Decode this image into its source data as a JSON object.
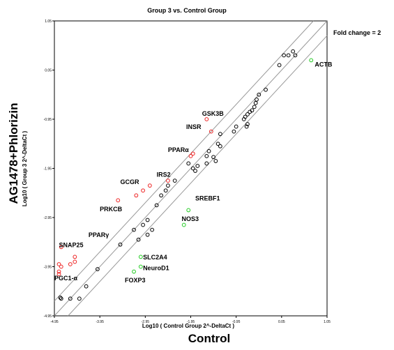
{
  "chart_data": {
    "type": "scatter",
    "title": "Group 3 vs. Control Group",
    "xlabel": "Log10 ( Control Group 2^-DeltaCt )",
    "ylabel": "Log10 ( Group 3 2^-DeltaCt )",
    "outer_xlabel": "Control",
    "outer_ylabel": "AG1478+Phlorizin",
    "xlim": [
      -4.95,
      1.05
    ],
    "ylim": [
      -4.95,
      1.05
    ],
    "x_ticks": [
      "-4.95",
      "-3.95",
      "-2.95",
      "-1.95",
      "-0.95",
      "0.05",
      "1.05"
    ],
    "y_ticks": [
      "-4.95",
      "-3.95",
      "-2.95",
      "-1.95",
      "-0.95",
      "0.05",
      "1.05"
    ],
    "fold_change_label": "Fold change = 2",
    "colors": {
      "unchanged": "#000000",
      "up": "#ee2222",
      "down": "#22cc22",
      "guide": "#999999"
    },
    "series": [
      {
        "group": "unchanged",
        "points": [
          [
            0.0,
            0.15
          ],
          [
            0.1,
            0.35
          ],
          [
            0.2,
            0.35
          ],
          [
            0.3,
            0.43
          ],
          [
            0.35,
            0.35
          ],
          [
            -0.3,
            -0.35
          ],
          [
            -0.45,
            -0.45
          ],
          [
            -0.5,
            -0.55
          ],
          [
            -0.52,
            -0.62
          ],
          [
            -0.55,
            -0.7
          ],
          [
            -0.6,
            -0.77
          ],
          [
            -0.65,
            -0.8
          ],
          [
            -0.7,
            -0.85
          ],
          [
            -0.75,
            -0.9
          ],
          [
            -0.78,
            -0.95
          ],
          [
            -0.7,
            -1.05
          ],
          [
            -0.72,
            -1.1
          ],
          [
            -0.95,
            -1.1
          ],
          [
            -1.0,
            -1.2
          ],
          [
            -1.3,
            -1.25
          ],
          [
            -1.3,
            -1.5
          ],
          [
            -1.35,
            -1.45
          ],
          [
            -1.55,
            -1.6
          ],
          [
            -1.6,
            -1.7
          ],
          [
            -1.45,
            -1.72
          ],
          [
            -1.6,
            -1.85
          ],
          [
            -1.8,
            -1.9
          ],
          [
            -1.9,
            -1.95
          ],
          [
            -2.0,
            -1.85
          ],
          [
            -1.85,
            -2.0
          ],
          [
            -1.4,
            -1.8
          ],
          [
            -2.3,
            -2.2
          ],
          [
            -2.45,
            -2.3
          ],
          [
            -2.5,
            -2.4
          ],
          [
            -2.6,
            -2.5
          ],
          [
            -2.7,
            -2.7
          ],
          [
            -2.9,
            -3.0
          ],
          [
            -3.0,
            -3.1
          ],
          [
            -3.2,
            -3.2
          ],
          [
            -3.1,
            -3.4
          ],
          [
            -2.9,
            -3.3
          ],
          [
            -2.8,
            -3.2
          ],
          [
            -3.5,
            -3.5
          ],
          [
            -4.0,
            -4.0
          ],
          [
            -4.25,
            -4.35
          ],
          [
            -4.4,
            -4.6
          ],
          [
            -4.6,
            -4.6
          ],
          [
            -4.8,
            -4.6
          ],
          [
            -4.82,
            -4.58
          ]
        ]
      },
      {
        "group": "up",
        "points": [
          [
            -1.6,
            -0.95
          ],
          [
            -1.5,
            -1.2
          ],
          [
            -1.9,
            -1.65
          ],
          [
            -1.95,
            -1.7
          ],
          [
            -2.45,
            -2.2
          ],
          [
            -2.85,
            -2.3
          ],
          [
            -3.0,
            -2.4
          ],
          [
            -3.15,
            -2.5
          ],
          [
            -3.55,
            -2.6
          ],
          [
            -4.8,
            -3.55
          ],
          [
            -4.5,
            -3.75
          ],
          [
            -4.5,
            -3.85
          ],
          [
            -4.6,
            -3.9
          ],
          [
            -4.85,
            -3.9
          ],
          [
            -4.8,
            -3.95
          ],
          [
            -4.85,
            -4.05
          ],
          [
            -4.85,
            -4.1
          ]
        ]
      },
      {
        "group": "down",
        "points": [
          [
            0.7,
            0.25
          ],
          [
            -2.0,
            -2.8
          ],
          [
            -2.1,
            -3.1
          ],
          [
            -3.05,
            -3.75
          ],
          [
            -3.05,
            -3.95
          ],
          [
            -3.2,
            -4.05
          ]
        ]
      }
    ],
    "annotations": [
      {
        "text": "ACTB",
        "x": 0.78,
        "y": 0.12,
        "anchor": "start"
      },
      {
        "text": "GSK3B",
        "x": -1.7,
        "y": -0.88,
        "anchor": "start"
      },
      {
        "text": "INSR",
        "x": -2.05,
        "y": -1.15,
        "anchor": "start"
      },
      {
        "text": "PPARα",
        "x": -2.45,
        "y": -1.62,
        "anchor": "start"
      },
      {
        "text": "IRS2",
        "x": -2.7,
        "y": -2.12,
        "anchor": "start"
      },
      {
        "text": "SREBF1",
        "x": -1.85,
        "y": -2.6,
        "anchor": "start"
      },
      {
        "text": "NOS3",
        "x": -2.15,
        "y": -3.02,
        "anchor": "start"
      },
      {
        "text": "GCGR",
        "x": -3.5,
        "y": -2.27,
        "anchor": "start"
      },
      {
        "text": "PRKCB",
        "x": -3.95,
        "y": -2.82,
        "anchor": "start"
      },
      {
        "text": "PPARγ",
        "x": -4.2,
        "y": -3.35,
        "anchor": "start"
      },
      {
        "text": "SNAP25",
        "x": -4.85,
        "y": -3.55,
        "anchor": "start"
      },
      {
        "text": "SLC2A4",
        "x": -3.0,
        "y": -3.8,
        "anchor": "start"
      },
      {
        "text": "NeuroD1",
        "x": -3.0,
        "y": -4.02,
        "anchor": "start"
      },
      {
        "text": "FOXP3",
        "x": -3.4,
        "y": -4.27,
        "anchor": "start"
      },
      {
        "text": "PGC1-α",
        "x": -4.95,
        "y": -4.23,
        "anchor": "start"
      }
    ],
    "grid": false,
    "legend": "none"
  }
}
